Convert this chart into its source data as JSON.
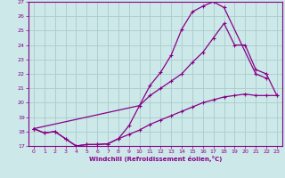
{
  "xlabel": "Windchill (Refroidissement éolien,°C)",
  "bg_color": "#cce8e8",
  "line_color": "#880088",
  "grid_color": "#aacccc",
  "xlim": [
    -0.5,
    23.5
  ],
  "ylim": [
    17,
    27
  ],
  "yticks": [
    17,
    18,
    19,
    20,
    21,
    22,
    23,
    24,
    25,
    26,
    27
  ],
  "xticks": [
    0,
    1,
    2,
    3,
    4,
    5,
    6,
    7,
    8,
    9,
    10,
    11,
    12,
    13,
    14,
    15,
    16,
    17,
    18,
    19,
    20,
    21,
    22,
    23
  ],
  "line1_x": [
    0,
    1,
    2,
    3,
    4,
    5,
    6,
    7,
    8,
    9,
    10,
    11,
    12,
    13,
    14,
    15,
    16,
    17,
    18,
    21,
    22
  ],
  "line1_y": [
    18.2,
    17.9,
    18.0,
    17.5,
    17.0,
    17.1,
    17.1,
    17.15,
    17.5,
    18.4,
    19.8,
    21.2,
    22.1,
    23.3,
    25.1,
    26.3,
    26.7,
    27.0,
    26.6,
    22.0,
    21.7
  ],
  "line2_x": [
    0,
    10,
    11,
    12,
    13,
    14,
    15,
    16,
    17,
    18,
    19,
    20,
    21,
    22,
    23
  ],
  "line2_y": [
    18.2,
    19.8,
    20.5,
    21.0,
    21.5,
    22.0,
    22.8,
    23.5,
    24.5,
    25.5,
    24.0,
    24.0,
    22.3,
    22.0,
    20.5
  ],
  "line3_x": [
    0,
    1,
    2,
    3,
    4,
    5,
    6,
    7,
    8,
    9,
    10,
    11,
    12,
    13,
    14,
    15,
    16,
    17,
    18,
    19,
    20,
    21,
    22,
    23
  ],
  "line3_y": [
    18.2,
    17.9,
    18.0,
    17.5,
    17.0,
    17.1,
    17.1,
    17.15,
    17.5,
    17.8,
    18.1,
    18.5,
    18.8,
    19.1,
    19.4,
    19.7,
    20.0,
    20.2,
    20.4,
    20.5,
    20.6,
    20.5,
    20.5,
    20.5
  ]
}
